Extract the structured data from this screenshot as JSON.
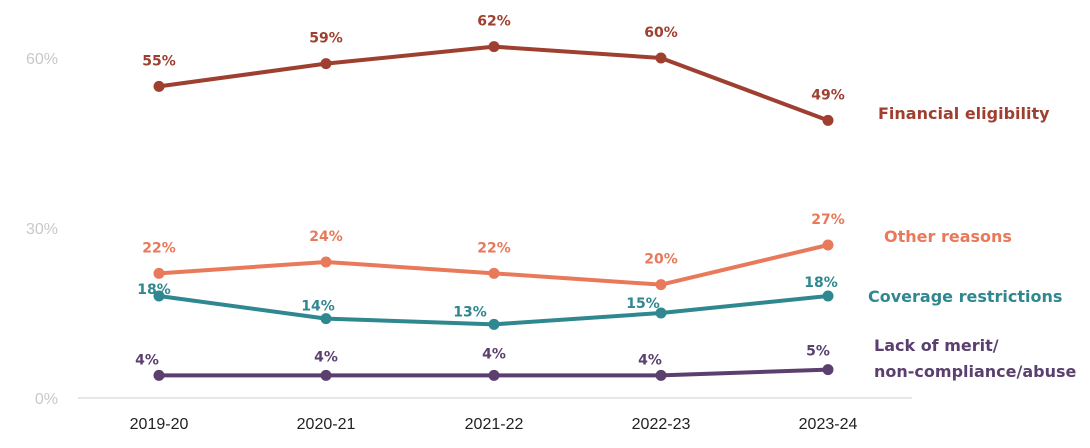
{
  "chart_data": {
    "type": "line",
    "title": "",
    "xlabel": "",
    "ylabel": "",
    "categories": [
      "2019-20",
      "2020-21",
      "2021-22",
      "2022-23",
      "2023-24"
    ],
    "ylim": [
      0,
      60
    ],
    "yticks": [
      0,
      30,
      60
    ],
    "ytick_labels": [
      "0%",
      "30%",
      "60%"
    ],
    "grid": false,
    "legend": "right, inline at series ends",
    "series": [
      {
        "name": "Financial eligibility",
        "legend_lines": [
          "Financial eligibility"
        ],
        "values": [
          55,
          59,
          62,
          60,
          49
        ],
        "labels": [
          "55%",
          "59%",
          "62%",
          "60%",
          "49%"
        ],
        "color": "#9e3f2f"
      },
      {
        "name": "Other reasons",
        "legend_lines": [
          "Other reasons"
        ],
        "values": [
          22,
          24,
          22,
          20,
          27
        ],
        "labels": [
          "22%",
          "24%",
          "22%",
          "20%",
          "27%"
        ],
        "color": "#e8795a"
      },
      {
        "name": "Coverage restrictions",
        "legend_lines": [
          "Coverage restrictions"
        ],
        "values": [
          18,
          14,
          13,
          15,
          18
        ],
        "labels": [
          "18%",
          "14%",
          "13%",
          "15%",
          "18%"
        ],
        "color": "#2f8790"
      },
      {
        "name": "Lack of merit/ non-compliance/abuse",
        "legend_lines": [
          "Lack of merit/",
          "non-compliance/abuse"
        ],
        "values": [
          4,
          4,
          4,
          4,
          5
        ],
        "labels": [
          "4%",
          "4%",
          "4%",
          "4%",
          "5%"
        ],
        "color": "#5b3f6e"
      }
    ]
  }
}
